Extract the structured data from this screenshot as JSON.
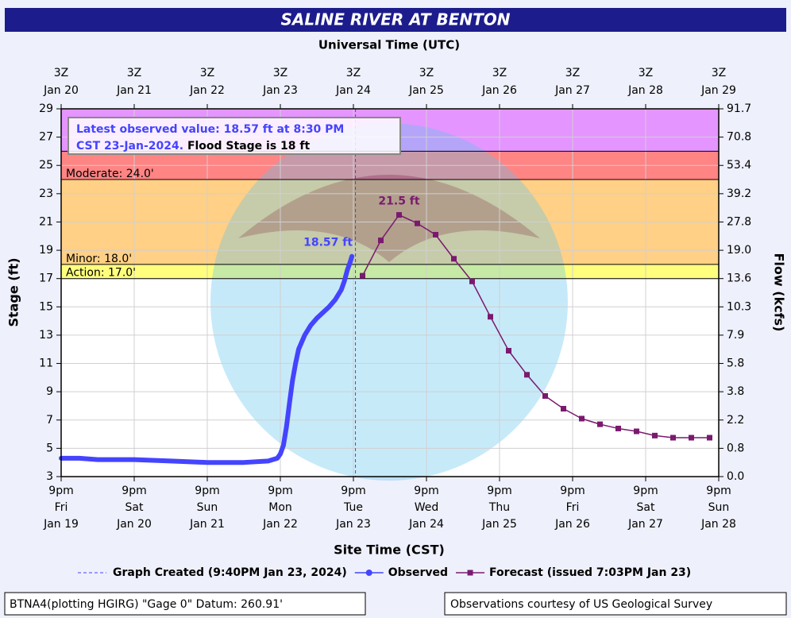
{
  "chart_data": {
    "type": "line",
    "title": "SALINE RIVER AT BENTON",
    "x2_label": "Universal Time (UTC)",
    "x_label": "Site Time (CST)",
    "y_label": "Stage (ft)",
    "y2_label": "Flow (kcfs)",
    "ylim": [
      3,
      29
    ],
    "yticks": [
      29,
      27,
      25,
      23,
      21,
      19,
      17,
      15,
      13,
      11,
      9,
      7,
      5,
      3
    ],
    "y2ticks": [
      91.7,
      70.8,
      53.4,
      39.2,
      27.8,
      {
        "value": 19,
        "label": "19.0"
      },
      13.6,
      10.3,
      7.9,
      5.8,
      3.8,
      2.2,
      0.8,
      {
        "value": 0,
        "label": "0.0"
      }
    ],
    "xlim": [
      "2024-01-19T21:00",
      "2024-01-28T21:00"
    ],
    "xticks": [
      {
        "value": "2024-01-19T21:00",
        "label": [
          "9pm",
          "Fri",
          "Jan 19"
        ]
      },
      {
        "value": "2024-01-20T21:00",
        "label": [
          "9pm",
          "Sat",
          "Jan 20"
        ]
      },
      {
        "value": "2024-01-21T21:00",
        "label": [
          "9pm",
          "Sun",
          "Jan 21"
        ]
      },
      {
        "value": "2024-01-22T21:00",
        "label": [
          "9pm",
          "Mon",
          "Jan 22"
        ]
      },
      {
        "value": "2024-01-23T21:00",
        "label": [
          "9pm",
          "Tue",
          "Jan 23"
        ]
      },
      {
        "value": "2024-01-24T21:00",
        "label": [
          "9pm",
          "Wed",
          "Jan 24"
        ]
      },
      {
        "value": "2024-01-25T21:00",
        "label": [
          "9pm",
          "Thu",
          "Jan 25"
        ]
      },
      {
        "value": "2024-01-26T21:00",
        "label": [
          "9pm",
          "Fri",
          "Jan 26"
        ]
      },
      {
        "value": "2024-01-27T21:00",
        "label": [
          "9pm",
          "Sat",
          "Jan 27"
        ]
      },
      {
        "value": "2024-01-28T21:00",
        "label": [
          "9pm",
          "Sun",
          "Jan 28"
        ]
      }
    ],
    "x2ticks": [
      {
        "value": "2024-01-19T21:00",
        "label": [
          "3Z",
          "Jan 20"
        ]
      },
      {
        "value": "2024-01-20T21:00",
        "label": [
          "3Z",
          "Jan 21"
        ]
      },
      {
        "value": "2024-01-21T21:00",
        "label": [
          "3Z",
          "Jan 22"
        ]
      },
      {
        "value": "2024-01-22T21:00",
        "label": [
          "3Z",
          "Jan 23"
        ]
      },
      {
        "value": "2024-01-23T21:00",
        "label": [
          "3Z",
          "Jan 24"
        ]
      },
      {
        "value": "2024-01-24T21:00",
        "label": [
          "3Z",
          "Jan 25"
        ]
      },
      {
        "value": "2024-01-25T21:00",
        "label": [
          "3Z",
          "Jan 26"
        ]
      },
      {
        "value": "2024-01-26T21:00",
        "label": [
          "3Z",
          "Jan 27"
        ]
      },
      {
        "value": "2024-01-27T21:00",
        "label": [
          "3Z",
          "Jan 28"
        ]
      },
      {
        "value": "2024-01-28T21:00",
        "label": [
          "3Z",
          "Jan 29"
        ]
      }
    ],
    "grid": true,
    "thresholds": [
      {
        "value": 17,
        "label": "Action: 17.0'",
        "color": "#ffff66"
      },
      {
        "value": 18,
        "label": "Minor: 18.0'",
        "color": "#ffc870"
      },
      {
        "value": 24,
        "label": "Moderate: 24.0'",
        "color": "#ff6e6e"
      },
      {
        "value": 26,
        "color": "#e083ff"
      }
    ],
    "markers": [
      {
        "name": "Graph Created (9:40PM Jan 23, 2024)",
        "x": "2024-01-23T21:40",
        "color": "#4444ff"
      }
    ],
    "series": [
      {
        "name": "Observed",
        "color": "#4444ff",
        "x": [
          "2024-01-19T21:00",
          "2024-01-20T03:00",
          "2024-01-20T09:00",
          "2024-01-20T21:00",
          "2024-01-21T09:00",
          "2024-01-21T21:00",
          "2024-01-22T09:00",
          "2024-01-22T17:00",
          "2024-01-22T20:00",
          "2024-01-22T21:00",
          "2024-01-22T22:00",
          "2024-01-22T23:00",
          "2024-01-23T00:00",
          "2024-01-23T01:00",
          "2024-01-23T02:00",
          "2024-01-23T03:00",
          "2024-01-23T05:00",
          "2024-01-23T07:00",
          "2024-01-23T09:00",
          "2024-01-23T11:00",
          "2024-01-23T13:00",
          "2024-01-23T15:00",
          "2024-01-23T17:00",
          "2024-01-23T18:00",
          "2024-01-23T19:00",
          "2024-01-23T20:00",
          "2024-01-23T20:30"
        ],
        "values": [
          4.3,
          4.3,
          4.2,
          4.2,
          4.1,
          4.0,
          4.0,
          4.1,
          4.3,
          4.6,
          5.2,
          6.5,
          8.2,
          9.8,
          11.0,
          12.0,
          13.0,
          13.7,
          14.2,
          14.6,
          15.0,
          15.5,
          16.2,
          16.8,
          17.6,
          18.2,
          18.57
        ]
      },
      {
        "name": "Forecast (issued 7:03PM Jan 23)",
        "color": "#7a1a6e",
        "x": [
          "2024-01-24T00:00",
          "2024-01-24T06:00",
          "2024-01-24T12:00",
          "2024-01-24T18:00",
          "2024-01-25T00:00",
          "2024-01-25T06:00",
          "2024-01-25T12:00",
          "2024-01-25T18:00",
          "2024-01-26T00:00",
          "2024-01-26T06:00",
          "2024-01-26T12:00",
          "2024-01-26T18:00",
          "2024-01-27T00:00",
          "2024-01-27T06:00",
          "2024-01-27T12:00",
          "2024-01-27T18:00",
          "2024-01-28T00:00",
          "2024-01-28T06:00",
          "2024-01-28T12:00",
          "2024-01-28T18:00"
        ],
        "values": [
          17.2,
          19.7,
          21.5,
          20.9,
          20.1,
          18.4,
          16.8,
          14.3,
          11.9,
          10.2,
          8.7,
          7.8,
          7.1,
          6.7,
          6.4,
          6.2,
          5.9,
          5.75,
          5.75,
          5.75
        ]
      }
    ],
    "annotations": [
      {
        "series": 0,
        "text": "18.57 ft"
      },
      {
        "series": 1,
        "text": "21.5 ft"
      }
    ],
    "info_box": {
      "observed": "Latest observed value: 18.57 ft at 8:30 PM CST 23-Jan-2024.",
      "flood": "Flood Stage is 18 ft"
    },
    "footer_left": "BTNA4(plotting HGIRG) \"Gage 0\" Datum: 260.91'",
    "footer_right": "Observations courtesy of US Geological Survey"
  }
}
